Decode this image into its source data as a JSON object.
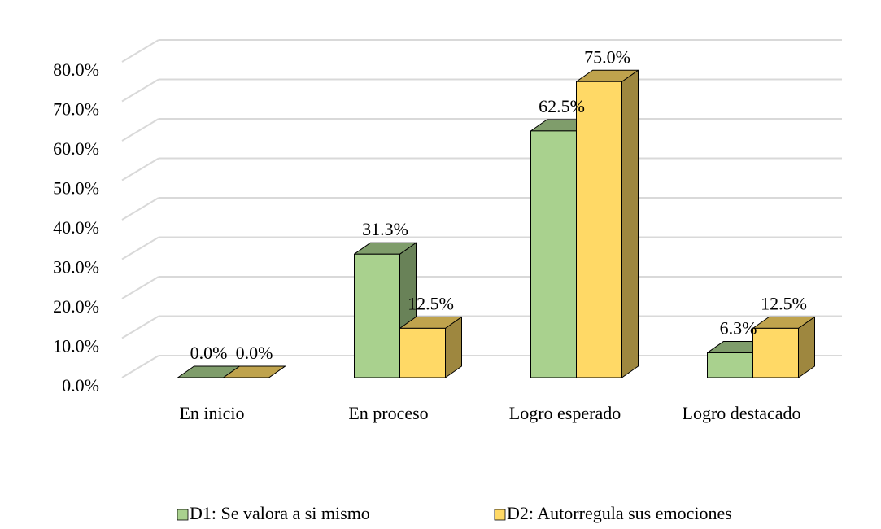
{
  "chart_data": {
    "type": "bar3d",
    "categories": [
      "En inicio",
      "En proceso",
      "Logro esperado",
      "Logro destacado"
    ],
    "series": [
      {
        "name": "D1: Se valora a si mismo",
        "color": "#a9d18e",
        "values": [
          0,
          31.3,
          62.5,
          6.3
        ],
        "value_labels": [
          "0.0%",
          "31.3%",
          "62.5%",
          "6.3%"
        ]
      },
      {
        "name": "D2: Autorregula sus emociones",
        "color": "#ffd966",
        "values": [
          0,
          12.5,
          75,
          12.5
        ],
        "value_labels": [
          "0.0%",
          "12.5%",
          "75.0%",
          "12.5%"
        ]
      }
    ],
    "ylim": [
      0,
      80
    ],
    "yticks": [
      {
        "value": 0,
        "label": "0.0%"
      },
      {
        "value": 10,
        "label": "10.0%"
      },
      {
        "value": 20,
        "label": "20.0%"
      },
      {
        "value": 30,
        "label": "30.0%"
      },
      {
        "value": 40,
        "label": "40.0%"
      },
      {
        "value": 50,
        "label": "50.0%"
      },
      {
        "value": 60,
        "label": "60.0%"
      },
      {
        "value": 70,
        "label": "70.0%"
      },
      {
        "value": 80,
        "label": "80.0%"
      }
    ],
    "grid": true,
    "legend": "bottom"
  }
}
